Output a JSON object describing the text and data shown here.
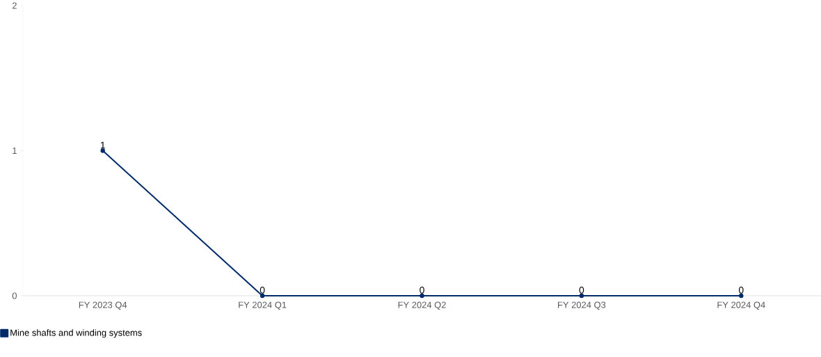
{
  "chart_data": {
    "type": "line",
    "categories": [
      "FY 2023 Q4",
      "FY 2024 Q1",
      "FY 2024 Q2",
      "FY 2024 Q3",
      "FY 2024 Q4"
    ],
    "series": [
      {
        "name": "Mine shafts and winding systems",
        "color": "#002a6a",
        "values": [
          1,
          0,
          0,
          0,
          0
        ]
      }
    ],
    "ylim": [
      0,
      2
    ],
    "yticks": [
      0,
      1,
      2
    ],
    "data_labels": true,
    "marker": "circle",
    "line_style": "solid",
    "grid": false,
    "legend": "bottom left"
  }
}
